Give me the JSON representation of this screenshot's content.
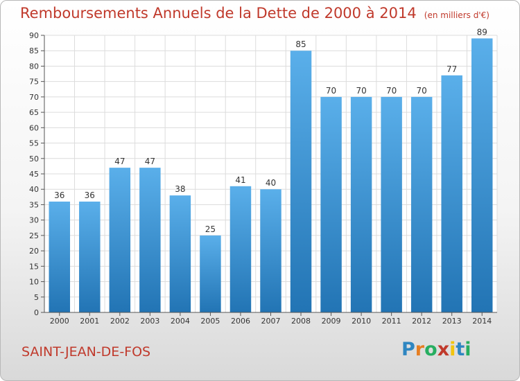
{
  "chart_data": {
    "type": "bar",
    "title": "Remboursements Annuels de la Dette de 2000 à 2014",
    "subtitle": "(en milliers d'€)",
    "xlabel": "",
    "ylabel": "",
    "ylim": [
      0,
      90
    ],
    "ytick_step": 5,
    "grid": true,
    "categories": [
      "2000",
      "2001",
      "2002",
      "2003",
      "2004",
      "2005",
      "2006",
      "2007",
      "2008",
      "2009",
      "2010",
      "2011",
      "2012",
      "2013",
      "2014"
    ],
    "values": [
      36,
      36,
      47,
      47,
      38,
      25,
      41,
      40,
      85,
      70,
      70,
      70,
      70,
      77,
      89
    ],
    "bar_color_top": "#5aafea",
    "bar_color_bottom": "#2274b4"
  },
  "footer": {
    "town": "SAINT-JEAN-DE-FOS",
    "brand_letters": [
      {
        "ch": "P",
        "color": "#2e86c1"
      },
      {
        "ch": "r",
        "color": "#e67e22"
      },
      {
        "ch": "o",
        "color": "#27ae60"
      },
      {
        "ch": "x",
        "color": "#c0392b"
      },
      {
        "ch": "i",
        "color": "#f1c40f"
      },
      {
        "ch": "t",
        "color": "#2e86c1"
      },
      {
        "ch": "i",
        "color": "#27ae60"
      }
    ]
  }
}
